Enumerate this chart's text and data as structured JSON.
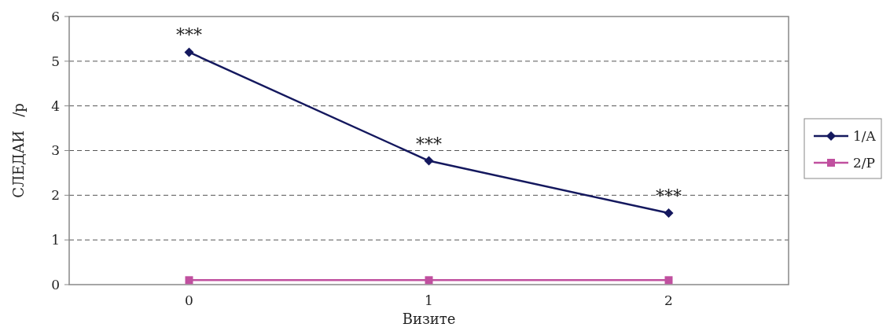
{
  "chart_data": {
    "type": "line",
    "xlabel": "Визите",
    "ylabel": "СЛЕДАИ   /р",
    "categories": [
      "0",
      "1",
      "2"
    ],
    "series": [
      {
        "name": "1/A",
        "color": "#14185e",
        "marker": "diamond",
        "values": [
          5.2,
          2.77,
          1.6
        ]
      },
      {
        "name": "2/P",
        "color": "#c0509f",
        "marker": "square",
        "values": [
          0.1,
          0.1,
          0.1
        ]
      }
    ],
    "ylim": [
      0,
      6
    ],
    "yticks": [
      0,
      1,
      2,
      3,
      4,
      5,
      6
    ],
    "grid": "y",
    "legend": "right",
    "annotations": [
      {
        "text": "***",
        "x": "0",
        "y": 5.2
      },
      {
        "text": "***",
        "x": "1",
        "y": 2.77
      },
      {
        "text": "***",
        "x": "2",
        "y": 1.6
      }
    ]
  }
}
